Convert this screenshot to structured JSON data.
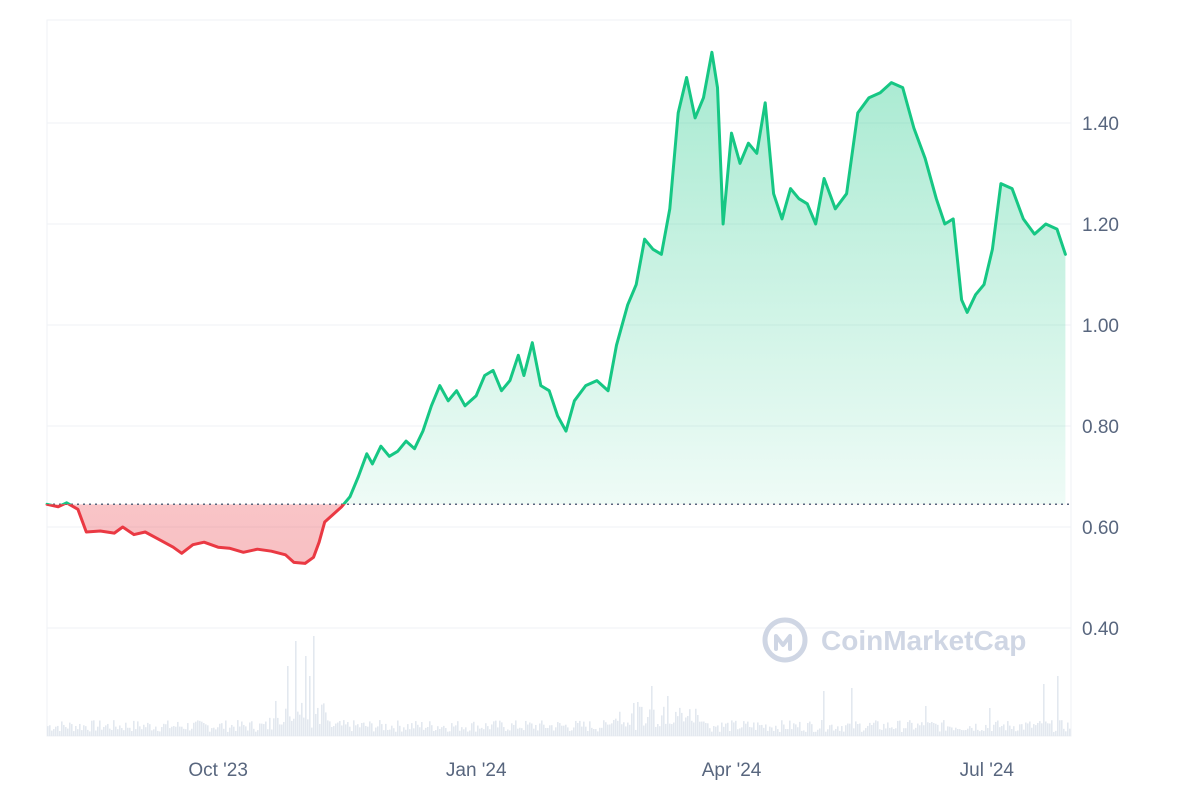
{
  "chart_data": {
    "type": "area",
    "baseline": 0.645,
    "ylim": [
      0.2,
      1.6
    ],
    "y_ticks": [
      {
        "value": 1.4,
        "label": "1.40"
      },
      {
        "value": 1.2,
        "label": "1.20"
      },
      {
        "value": 1.0,
        "label": "1.00"
      },
      {
        "value": 0.8,
        "label": "0.80"
      },
      {
        "value": 0.6,
        "label": "0.60"
      },
      {
        "value": 0.4,
        "label": "0.40"
      }
    ],
    "x_range": [
      "2023-08-01",
      "2024-07-31"
    ],
    "x_ticks": [
      {
        "date": "2023-10-01",
        "label": "Oct '23"
      },
      {
        "date": "2024-01-01",
        "label": "Jan '24"
      },
      {
        "date": "2024-04-01",
        "label": "Apr '24"
      },
      {
        "date": "2024-07-01",
        "label": "Jul '24"
      }
    ],
    "colors": {
      "up": "#16c784",
      "down": "#ea3943",
      "grid": "#eff2f5",
      "volume": "#e3e8ef",
      "axis_text": "#58667e"
    },
    "series": [
      {
        "values": [
          [
            "2023-08-01",
            0.645
          ],
          [
            "2023-08-05",
            0.64
          ],
          [
            "2023-08-08",
            0.648
          ],
          [
            "2023-08-12",
            0.635
          ],
          [
            "2023-08-15",
            0.59
          ],
          [
            "2023-08-20",
            0.592
          ],
          [
            "2023-08-25",
            0.588
          ],
          [
            "2023-08-28",
            0.6
          ],
          [
            "2023-09-01",
            0.585
          ],
          [
            "2023-09-05",
            0.59
          ],
          [
            "2023-09-10",
            0.575
          ],
          [
            "2023-09-15",
            0.56
          ],
          [
            "2023-09-18",
            0.548
          ],
          [
            "2023-09-22",
            0.565
          ],
          [
            "2023-09-26",
            0.57
          ],
          [
            "2023-10-01",
            0.56
          ],
          [
            "2023-10-05",
            0.558
          ],
          [
            "2023-10-10",
            0.55
          ],
          [
            "2023-10-15",
            0.556
          ],
          [
            "2023-10-20",
            0.552
          ],
          [
            "2023-10-25",
            0.545
          ],
          [
            "2023-10-28",
            0.53
          ],
          [
            "2023-11-01",
            0.528
          ],
          [
            "2023-11-04",
            0.54
          ],
          [
            "2023-11-06",
            0.57
          ],
          [
            "2023-11-08",
            0.61
          ],
          [
            "2023-11-11",
            0.625
          ],
          [
            "2023-11-14",
            0.64
          ],
          [
            "2023-11-17",
            0.66
          ],
          [
            "2023-11-20",
            0.7
          ],
          [
            "2023-11-23",
            0.745
          ],
          [
            "2023-11-25",
            0.725
          ],
          [
            "2023-11-28",
            0.76
          ],
          [
            "2023-12-01",
            0.74
          ],
          [
            "2023-12-04",
            0.75
          ],
          [
            "2023-12-07",
            0.77
          ],
          [
            "2023-12-10",
            0.755
          ],
          [
            "2023-12-13",
            0.79
          ],
          [
            "2023-12-16",
            0.84
          ],
          [
            "2023-12-19",
            0.88
          ],
          [
            "2023-12-22",
            0.85
          ],
          [
            "2023-12-25",
            0.87
          ],
          [
            "2023-12-28",
            0.84
          ],
          [
            "2024-01-01",
            0.86
          ],
          [
            "2024-01-04",
            0.9
          ],
          [
            "2024-01-07",
            0.91
          ],
          [
            "2024-01-10",
            0.87
          ],
          [
            "2024-01-13",
            0.89
          ],
          [
            "2024-01-16",
            0.94
          ],
          [
            "2024-01-18",
            0.9
          ],
          [
            "2024-01-21",
            0.965
          ],
          [
            "2024-01-24",
            0.88
          ],
          [
            "2024-01-27",
            0.87
          ],
          [
            "2024-01-30",
            0.82
          ],
          [
            "2024-02-02",
            0.79
          ],
          [
            "2024-02-05",
            0.85
          ],
          [
            "2024-02-09",
            0.88
          ],
          [
            "2024-02-13",
            0.89
          ],
          [
            "2024-02-17",
            0.87
          ],
          [
            "2024-02-20",
            0.96
          ],
          [
            "2024-02-24",
            1.04
          ],
          [
            "2024-02-27",
            1.08
          ],
          [
            "2024-03-01",
            1.17
          ],
          [
            "2024-03-04",
            1.15
          ],
          [
            "2024-03-07",
            1.14
          ],
          [
            "2024-03-10",
            1.23
          ],
          [
            "2024-03-13",
            1.42
          ],
          [
            "2024-03-16",
            1.49
          ],
          [
            "2024-03-19",
            1.41
          ],
          [
            "2024-03-22",
            1.45
          ],
          [
            "2024-03-25",
            1.54
          ],
          [
            "2024-03-27",
            1.47
          ],
          [
            "2024-03-29",
            1.2
          ],
          [
            "2024-04-01",
            1.38
          ],
          [
            "2024-04-04",
            1.32
          ],
          [
            "2024-04-07",
            1.36
          ],
          [
            "2024-04-10",
            1.34
          ],
          [
            "2024-04-13",
            1.44
          ],
          [
            "2024-04-16",
            1.26
          ],
          [
            "2024-04-19",
            1.21
          ],
          [
            "2024-04-22",
            1.27
          ],
          [
            "2024-04-25",
            1.25
          ],
          [
            "2024-04-28",
            1.24
          ],
          [
            "2024-05-01",
            1.2
          ],
          [
            "2024-05-04",
            1.29
          ],
          [
            "2024-05-08",
            1.23
          ],
          [
            "2024-05-12",
            1.26
          ],
          [
            "2024-05-16",
            1.42
          ],
          [
            "2024-05-20",
            1.45
          ],
          [
            "2024-05-24",
            1.46
          ],
          [
            "2024-05-28",
            1.48
          ],
          [
            "2024-06-01",
            1.47
          ],
          [
            "2024-06-05",
            1.39
          ],
          [
            "2024-06-09",
            1.33
          ],
          [
            "2024-06-13",
            1.25
          ],
          [
            "2024-06-16",
            1.2
          ],
          [
            "2024-06-19",
            1.21
          ],
          [
            "2024-06-22",
            1.05
          ],
          [
            "2024-06-24",
            1.025
          ],
          [
            "2024-06-27",
            1.06
          ],
          [
            "2024-06-30",
            1.08
          ],
          [
            "2024-07-03",
            1.15
          ],
          [
            "2024-07-06",
            1.28
          ],
          [
            "2024-07-10",
            1.27
          ],
          [
            "2024-07-14",
            1.21
          ],
          [
            "2024-07-18",
            1.18
          ],
          [
            "2024-07-22",
            1.2
          ],
          [
            "2024-07-26",
            1.19
          ],
          [
            "2024-07-29",
            1.14
          ]
        ]
      }
    ],
    "volume_shown": true,
    "watermark": "CoinMarketCap"
  }
}
